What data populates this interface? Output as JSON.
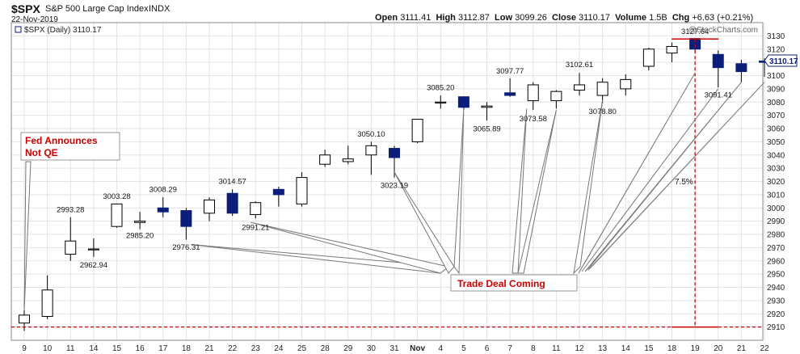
{
  "header": {
    "ticker": "$SPX",
    "name": "S&P 500 Large Cap Index",
    "exchange": "INDX",
    "date": "22-Nov-2019",
    "open_label": "Open",
    "open": "3111.41",
    "high_label": "High",
    "high": "3112.87",
    "low_label": "Low",
    "low": "3099.26",
    "close_label": "Close",
    "close": "3110.17",
    "volume_label": "Volume",
    "volume": "1.5B",
    "chg_label": "Chg",
    "chg": "+6.63 (+0.21%)",
    "watermark": "@StockCharts.com",
    "legend": "$SPX (Daily) 3110.17",
    "last_price": "3110.17"
  },
  "annotations": {
    "fed": [
      "Fed Announces",
      "Not QE"
    ],
    "trade": "Trade Deal Coming",
    "pct": "7.5%"
  },
  "colors": {
    "up": "#ffffff",
    "down": "#0b1e7a",
    "wick": "#000000",
    "red": "#cc0000",
    "grid": "#e3e3e3"
  },
  "chart_data": {
    "type": "candlestick",
    "title": "$SPX (Daily) 3110.17",
    "ylim": [
      2900,
      3140
    ],
    "yticks": [
      2910,
      2920,
      2930,
      2940,
      2950,
      2960,
      2970,
      2980,
      2990,
      3000,
      3010,
      3020,
      3030,
      3040,
      3050,
      3060,
      3070,
      3080,
      3090,
      3100,
      3110,
      3120,
      3130
    ],
    "reference_line": 2910,
    "top_line": 3127.64,
    "categories": [
      "9",
      "10",
      "11",
      "14",
      "15",
      "16",
      "17",
      "18",
      "21",
      "22",
      "23",
      "24",
      "25",
      "28",
      "29",
      "30",
      "31",
      "Nov",
      "4",
      "5",
      "6",
      "7",
      "8",
      "11",
      "12",
      "13",
      "14",
      "15",
      "18",
      "19",
      "20",
      "21",
      "22"
    ],
    "candles": [
      {
        "o": 2913,
        "h": 2929,
        "l": 2907,
        "c": 2919
      },
      {
        "o": 2918,
        "h": 2949,
        "l": 2916,
        "c": 2938
      },
      {
        "o": 2965,
        "h": 2993,
        "l": 2960,
        "c": 2975
      },
      {
        "o": 2969,
        "h": 2977,
        "l": 2963,
        "c": 2969
      },
      {
        "o": 2986,
        "h": 3003,
        "l": 2985,
        "c": 3003
      },
      {
        "o": 2989,
        "h": 2997,
        "l": 2984,
        "c": 2990
      },
      {
        "o": 3000,
        "h": 3008,
        "l": 2993,
        "c": 2997
      },
      {
        "o": 2998,
        "h": 3000,
        "l": 2976,
        "c": 2986
      },
      {
        "o": 2996,
        "h": 3008,
        "l": 2990,
        "c": 3006
      },
      {
        "o": 3011,
        "h": 3014,
        "l": 2994,
        "c": 2996
      },
      {
        "o": 2995,
        "h": 3005,
        "l": 2992,
        "c": 3004
      },
      {
        "o": 3014,
        "h": 3016,
        "l": 3001,
        "c": 3010
      },
      {
        "o": 3003,
        "h": 3027,
        "l": 3001,
        "c": 3023
      },
      {
        "o": 3033,
        "h": 3044,
        "l": 3031,
        "c": 3040
      },
      {
        "o": 3035,
        "h": 3047,
        "l": 3033,
        "c": 3037
      },
      {
        "o": 3040,
        "h": 3050,
        "l": 3025,
        "c": 3047
      },
      {
        "o": 3045,
        "h": 3047,
        "l": 3023,
        "c": 3038
      },
      {
        "o": 3050,
        "h": 3067,
        "l": 3049,
        "c": 3067
      },
      {
        "o": 3080,
        "h": 3085,
        "l": 3075,
        "c": 3080
      },
      {
        "o": 3084,
        "h": 3084,
        "l": 3074,
        "c": 3076
      },
      {
        "o": 3076,
        "h": 3080,
        "l": 3066,
        "c": 3077
      },
      {
        "o": 3087,
        "h": 3098,
        "l": 3084,
        "c": 3085
      },
      {
        "o": 3081,
        "h": 3095,
        "l": 3074,
        "c": 3093
      },
      {
        "o": 3081,
        "h": 3089,
        "l": 3075,
        "c": 3088
      },
      {
        "o": 3089,
        "h": 3102,
        "l": 3085,
        "c": 3093
      },
      {
        "o": 3085,
        "h": 3098,
        "l": 3079,
        "c": 3095
      },
      {
        "o": 3090,
        "h": 3101,
        "l": 3085,
        "c": 3097
      },
      {
        "o": 3107,
        "h": 3121,
        "l": 3104,
        "c": 3120
      },
      {
        "o": 3117,
        "h": 3125,
        "l": 3110,
        "c": 3122
      },
      {
        "o": 3128,
        "h": 3128,
        "l": 3117,
        "c": 3120
      },
      {
        "o": 3116,
        "h": 3119,
        "l": 3091,
        "c": 3106
      },
      {
        "o": 3109,
        "h": 3112,
        "l": 3095,
        "c": 3103
      },
      {
        "o": 3111,
        "h": 3113,
        "l": 3099,
        "c": 3110
      }
    ],
    "price_labels": [
      {
        "i": 2,
        "y": 2993.28,
        "text": "2993.28",
        "pos": "above"
      },
      {
        "i": 3,
        "y": 2962.94,
        "text": "2962.94",
        "pos": "below"
      },
      {
        "i": 4,
        "y": 3003.28,
        "text": "3003.28",
        "pos": "above"
      },
      {
        "i": 5,
        "y": 2985.2,
        "text": "2985.20",
        "pos": "below"
      },
      {
        "i": 6,
        "y": 3008.29,
        "text": "3008.29",
        "pos": "above"
      },
      {
        "i": 7,
        "y": 2976.31,
        "text": "2976.31",
        "pos": "below"
      },
      {
        "i": 9,
        "y": 3014.57,
        "text": "3014.57",
        "pos": "above"
      },
      {
        "i": 10,
        "y": 2991.21,
        "text": "2991.21",
        "pos": "below"
      },
      {
        "i": 15,
        "y": 3050.1,
        "text": "3050.10",
        "pos": "above"
      },
      {
        "i": 16,
        "y": 3023.19,
        "text": "3023.19",
        "pos": "below"
      },
      {
        "i": 18,
        "y": 3085.2,
        "text": "3085.20",
        "pos": "above"
      },
      {
        "i": 20,
        "y": 3065.89,
        "text": "3065.89",
        "pos": "below"
      },
      {
        "i": 21,
        "y": 3097.77,
        "text": "3097.77",
        "pos": "above"
      },
      {
        "i": 22,
        "y": 3073.58,
        "text": "3073.58",
        "pos": "below"
      },
      {
        "i": 24,
        "y": 3102.61,
        "text": "3102.61",
        "pos": "above"
      },
      {
        "i": 25,
        "y": 3078.8,
        "text": "3078.80",
        "pos": "below"
      },
      {
        "i": 29,
        "y": 3127.64,
        "text": "3127.64",
        "pos": "above"
      },
      {
        "i": 30,
        "y": 3091.41,
        "text": "3091.41",
        "pos": "below"
      }
    ]
  }
}
